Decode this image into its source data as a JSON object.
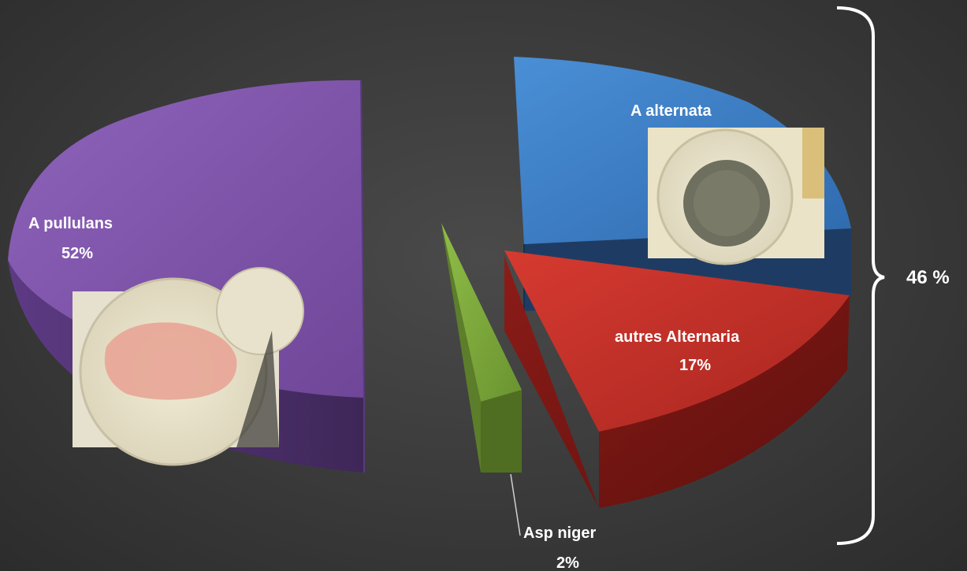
{
  "chart_data": {
    "type": "pie",
    "style": "3d-exploded",
    "slices": [
      {
        "label": "A pullulans",
        "value": 52,
        "value_label": "52%",
        "color": "#7e54aa"
      },
      {
        "label": "A alternata",
        "value": 29,
        "value_label": "",
        "color": "#3f7fc8"
      },
      {
        "label": "autres Alternaria",
        "value": 17,
        "value_label": "17%",
        "color": "#c8322b"
      },
      {
        "label": "Asp  niger",
        "value": 2,
        "value_label": "2%",
        "color": "#7aa23a"
      }
    ],
    "bracket_label": "46 %",
    "images": [
      {
        "slice": "A pullulans",
        "description_icon": "petri-dish-pink-culture"
      },
      {
        "slice": "A alternata",
        "description_icon": "petri-dish-dark-culture"
      }
    ]
  }
}
